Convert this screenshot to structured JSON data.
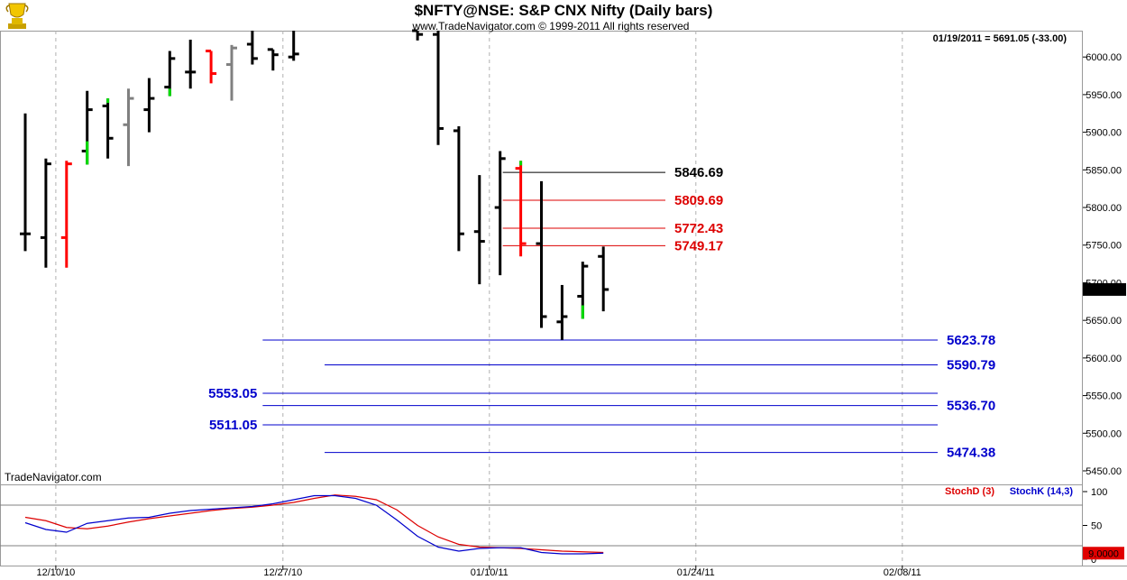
{
  "header": {
    "title": "$NFTY@NSE:  S&P CNX Nifty  (Daily bars)",
    "copyright": "www.TradeNavigator.com © 1999-2011 All rights reserved",
    "quote": "01/19/2011 = 5691.05 (-33.00)",
    "watermark": "TradeNavigator.com",
    "logo_icon": "trophy-icon"
  },
  "colors": {
    "up_bar": "#000000",
    "down_bar": "#ff0000",
    "neutral_bar": "#808080",
    "tick_green": "#00dd00",
    "support_line": "#0000cc",
    "resistance_line_red": "#dd0000",
    "resistance_line_black": "#000000",
    "stoch_d": "#dd0000",
    "stoch_k": "#0000cc",
    "grid": "#b0b0b0"
  },
  "chart_data": [
    {
      "type": "ohlc",
      "title": "$NFTY@NSE:  S&P CNX Nifty  (Daily bars)",
      "ylim": [
        5432,
        6035
      ],
      "y_ticks": [
        "6000.00",
        "5950.00",
        "5900.00",
        "5850.00",
        "5800.00",
        "5750.00",
        "5700.00",
        "5650.00",
        "5600.00",
        "5550.00",
        "5500.00",
        "5450.00"
      ],
      "y_tick_values": [
        6000,
        5950,
        5900,
        5850,
        5800,
        5750,
        5700,
        5650,
        5600,
        5550,
        5500,
        5450
      ],
      "x_labels": [
        "12/10/10",
        "12/27/10",
        "01/10/11",
        "01/24/11",
        "02/08/11"
      ],
      "x_label_index": [
        1,
        12,
        22,
        32,
        42
      ],
      "last_value_label": "5691.05",
      "last_value": 5691.05,
      "bars": [
        {
          "i": 0,
          "o": 5765,
          "h": 5925,
          "l": 5742,
          "c": 5765,
          "color": "up"
        },
        {
          "i": 1,
          "o": 5760,
          "h": 5865,
          "l": 5720,
          "c": 5858,
          "color": "up"
        },
        {
          "i": 2,
          "o": 5760,
          "h": 5862,
          "l": 5720,
          "c": 5858,
          "color": "down"
        },
        {
          "i": 3,
          "o": 5875,
          "h": 5955,
          "l": 5857,
          "c": 5930,
          "color": "up",
          "green_low": 5888
        },
        {
          "i": 4,
          "o": 5935,
          "h": 5945,
          "l": 5865,
          "c": 5892,
          "color": "up",
          "green_high": 5945
        },
        {
          "i": 5,
          "o": 5910,
          "h": 5958,
          "l": 5855,
          "c": 5945,
          "color": "neutral"
        },
        {
          "i": 6,
          "o": 5930,
          "h": 5972,
          "l": 5900,
          "c": 5945,
          "color": "up"
        },
        {
          "i": 7,
          "o": 5960,
          "h": 6008,
          "l": 5948,
          "c": 5998,
          "color": "up",
          "green_low": 5958
        },
        {
          "i": 8,
          "o": 5980,
          "h": 6023,
          "l": 5958,
          "c": 5980,
          "color": "up"
        },
        {
          "i": 9,
          "o": 6008,
          "h": 6008,
          "l": 5965,
          "c": 5978,
          "color": "down"
        },
        {
          "i": 10,
          "o": 5990,
          "h": 6016,
          "l": 5942,
          "c": 6012,
          "color": "neutral"
        },
        {
          "i": 11,
          "o": 6017,
          "h": 6035,
          "l": 5990,
          "c": 5998,
          "color": "up"
        },
        {
          "i": 12,
          "o": 6010,
          "h": 6010,
          "l": 5982,
          "c": 6003,
          "color": "up"
        },
        {
          "i": 13,
          "o": 6000,
          "h": 6035,
          "l": 5995,
          "c": 6004,
          "color": "up",
          "green_low": 5995
        },
        {
          "i": 19,
          "o": 6035,
          "h": 6035,
          "l": 6022,
          "c": 6030,
          "color": "up"
        },
        {
          "i": 20,
          "o": 6030,
          "h": 6035,
          "l": 5883,
          "c": 5905,
          "color": "up"
        },
        {
          "i": 21,
          "o": 5902,
          "h": 5908,
          "l": 5742,
          "c": 5765,
          "color": "up"
        },
        {
          "i": 22,
          "o": 5768,
          "h": 5843,
          "l": 5698,
          "c": 5755,
          "color": "up"
        },
        {
          "i": 23,
          "o": 5800,
          "h": 5875,
          "l": 5710,
          "c": 5865,
          "color": "up"
        },
        {
          "i": 24,
          "o": 5852,
          "h": 5862,
          "l": 5735,
          "c": 5752,
          "color": "down",
          "green_high": 5862
        },
        {
          "i": 25,
          "o": 5752,
          "h": 5835,
          "l": 5640,
          "c": 5655,
          "color": "up"
        },
        {
          "i": 26,
          "o": 5648,
          "h": 5697,
          "l": 5624,
          "c": 5655,
          "color": "up"
        },
        {
          "i": 27,
          "o": 5682,
          "h": 5728,
          "l": 5652,
          "c": 5722,
          "color": "up",
          "green_low": 5670
        },
        {
          "i": 28,
          "o": 5735,
          "h": 5748,
          "l": 5662,
          "c": 5691,
          "color": "up"
        }
      ],
      "levels": [
        {
          "value": 5846.69,
          "label": "5846.69",
          "color": "black",
          "from_i": 23,
          "label_side": "right"
        },
        {
          "value": 5809.69,
          "label": "5809.69",
          "color": "red",
          "from_i": 23,
          "label_side": "right"
        },
        {
          "value": 5772.43,
          "label": "5772.43",
          "color": "red",
          "from_i": 23,
          "label_side": "right"
        },
        {
          "value": 5749.17,
          "label": "5749.17",
          "color": "red",
          "from_i": 23,
          "label_side": "right"
        },
        {
          "value": 5623.78,
          "label": "5623.78",
          "color": "blue",
          "from_i": 11.5,
          "label_side": "right"
        },
        {
          "value": 5590.79,
          "label": "5590.79",
          "color": "blue",
          "from_i": 14.5,
          "label_side": "right"
        },
        {
          "value": 5553.05,
          "label": "5553.05",
          "color": "blue",
          "from_i": 11.5,
          "label_side": "left"
        },
        {
          "value": 5536.7,
          "label": "5536.70",
          "color": "blue",
          "from_i": 11.5,
          "label_side": "right"
        },
        {
          "value": 5511.05,
          "label": "5511.05",
          "color": "blue",
          "from_i": 11.5,
          "label_side": "left"
        },
        {
          "value": 5474.38,
          "label": "5474.38",
          "color": "blue",
          "from_i": 14.5,
          "label_side": "right"
        }
      ]
    },
    {
      "type": "line",
      "ylim": [
        0,
        100
      ],
      "y_ticks": [
        "100",
        "50",
        "0"
      ],
      "y_tick_values": [
        100,
        50,
        0
      ],
      "ref_lines": [
        80,
        20
      ],
      "last_value_label": "9.0000",
      "last_value": 9,
      "legend": [
        "StochD (3)",
        "StochK (14,3)"
      ],
      "x": [
        0,
        1,
        2,
        3,
        4,
        5,
        6,
        7,
        8,
        9,
        10,
        11,
        12,
        13,
        14,
        15,
        16,
        17,
        18,
        19,
        20,
        21,
        22,
        23,
        24,
        25,
        26,
        27,
        28
      ],
      "series": [
        {
          "name": "StochD (3)",
          "values": [
            62,
            57,
            47,
            45,
            49,
            55,
            60,
            64,
            68,
            72,
            75,
            77,
            80,
            84,
            90,
            95,
            93,
            88,
            73,
            50,
            33,
            22,
            18,
            17,
            16,
            14,
            12,
            11,
            10
          ]
        },
        {
          "name": "StochK (14,3)",
          "values": [
            54,
            44,
            40,
            53,
            57,
            61,
            62,
            68,
            72,
            74,
            76,
            78,
            82,
            88,
            94,
            94,
            90,
            80,
            58,
            34,
            18,
            12,
            16,
            17,
            17,
            10,
            8,
            8,
            9
          ]
        }
      ]
    }
  ]
}
